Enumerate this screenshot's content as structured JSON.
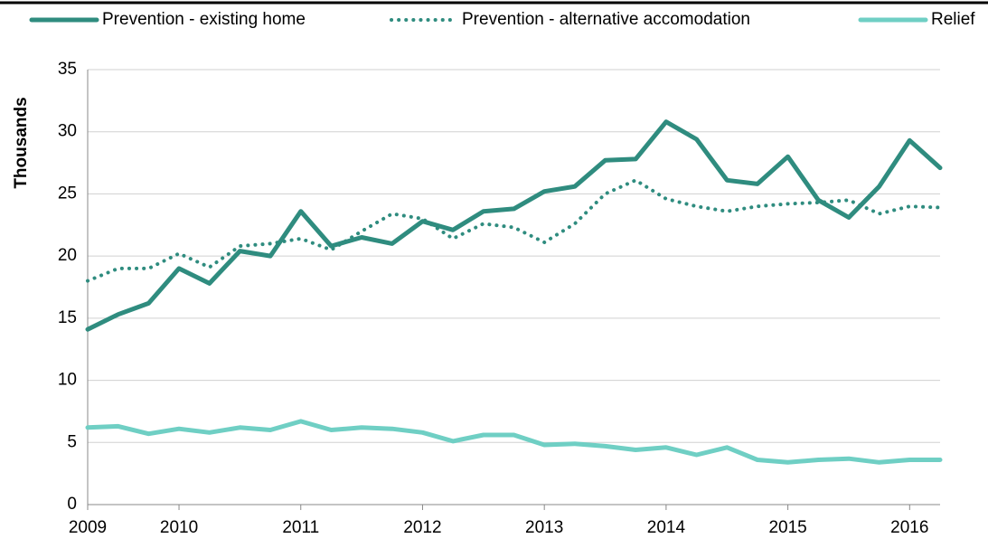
{
  "chart_data": {
    "type": "line",
    "y_label": "Thousands",
    "categories": [
      "2009",
      null,
      null,
      "2010",
      null,
      null,
      null,
      "2011",
      null,
      null,
      null,
      "2012",
      null,
      null,
      null,
      "2013",
      null,
      null,
      null,
      "2014",
      null,
      null,
      null,
      "2015",
      null,
      null,
      null,
      "2016",
      null
    ],
    "series": [
      {
        "name": "Prevention - existing home",
        "color": "#2f8c7f",
        "style": "solid",
        "values": [
          14.1,
          15.3,
          16.2,
          19.0,
          17.8,
          20.4,
          20.0,
          23.6,
          20.8,
          21.5,
          21.0,
          22.8,
          22.1,
          23.6,
          23.8,
          25.2,
          25.6,
          27.7,
          27.8,
          30.8,
          29.4,
          26.1,
          25.8,
          28.0,
          24.5,
          23.1,
          25.6,
          29.3,
          27.1
        ]
      },
      {
        "name": "Prevention - alternative accomodation",
        "color": "#2f8c7f",
        "style": "dotted",
        "values": [
          18.0,
          19.0,
          19.0,
          20.2,
          19.1,
          20.8,
          21.0,
          21.4,
          20.5,
          22.0,
          23.4,
          23.0,
          21.4,
          22.6,
          22.3,
          21.1,
          22.6,
          25.0,
          26.1,
          24.6,
          24.0,
          23.6,
          24.0,
          24.2,
          24.3,
          24.5,
          23.4,
          24.0,
          23.9
        ]
      },
      {
        "name": "Relief",
        "color": "#6fcfc4",
        "style": "solid",
        "values": [
          6.2,
          6.3,
          5.7,
          6.1,
          5.8,
          6.2,
          6.0,
          6.7,
          6.0,
          6.2,
          6.1,
          5.8,
          5.1,
          5.6,
          5.6,
          4.8,
          4.9,
          4.7,
          4.4,
          4.6,
          4.0,
          4.6,
          3.6,
          3.4,
          3.6,
          3.7,
          3.4,
          3.6,
          3.6
        ]
      }
    ],
    "ylim": [
      0,
      35
    ],
    "yticks": [
      0,
      5,
      10,
      15,
      20,
      25,
      30,
      35
    ],
    "grid": true,
    "legend": "top"
  }
}
